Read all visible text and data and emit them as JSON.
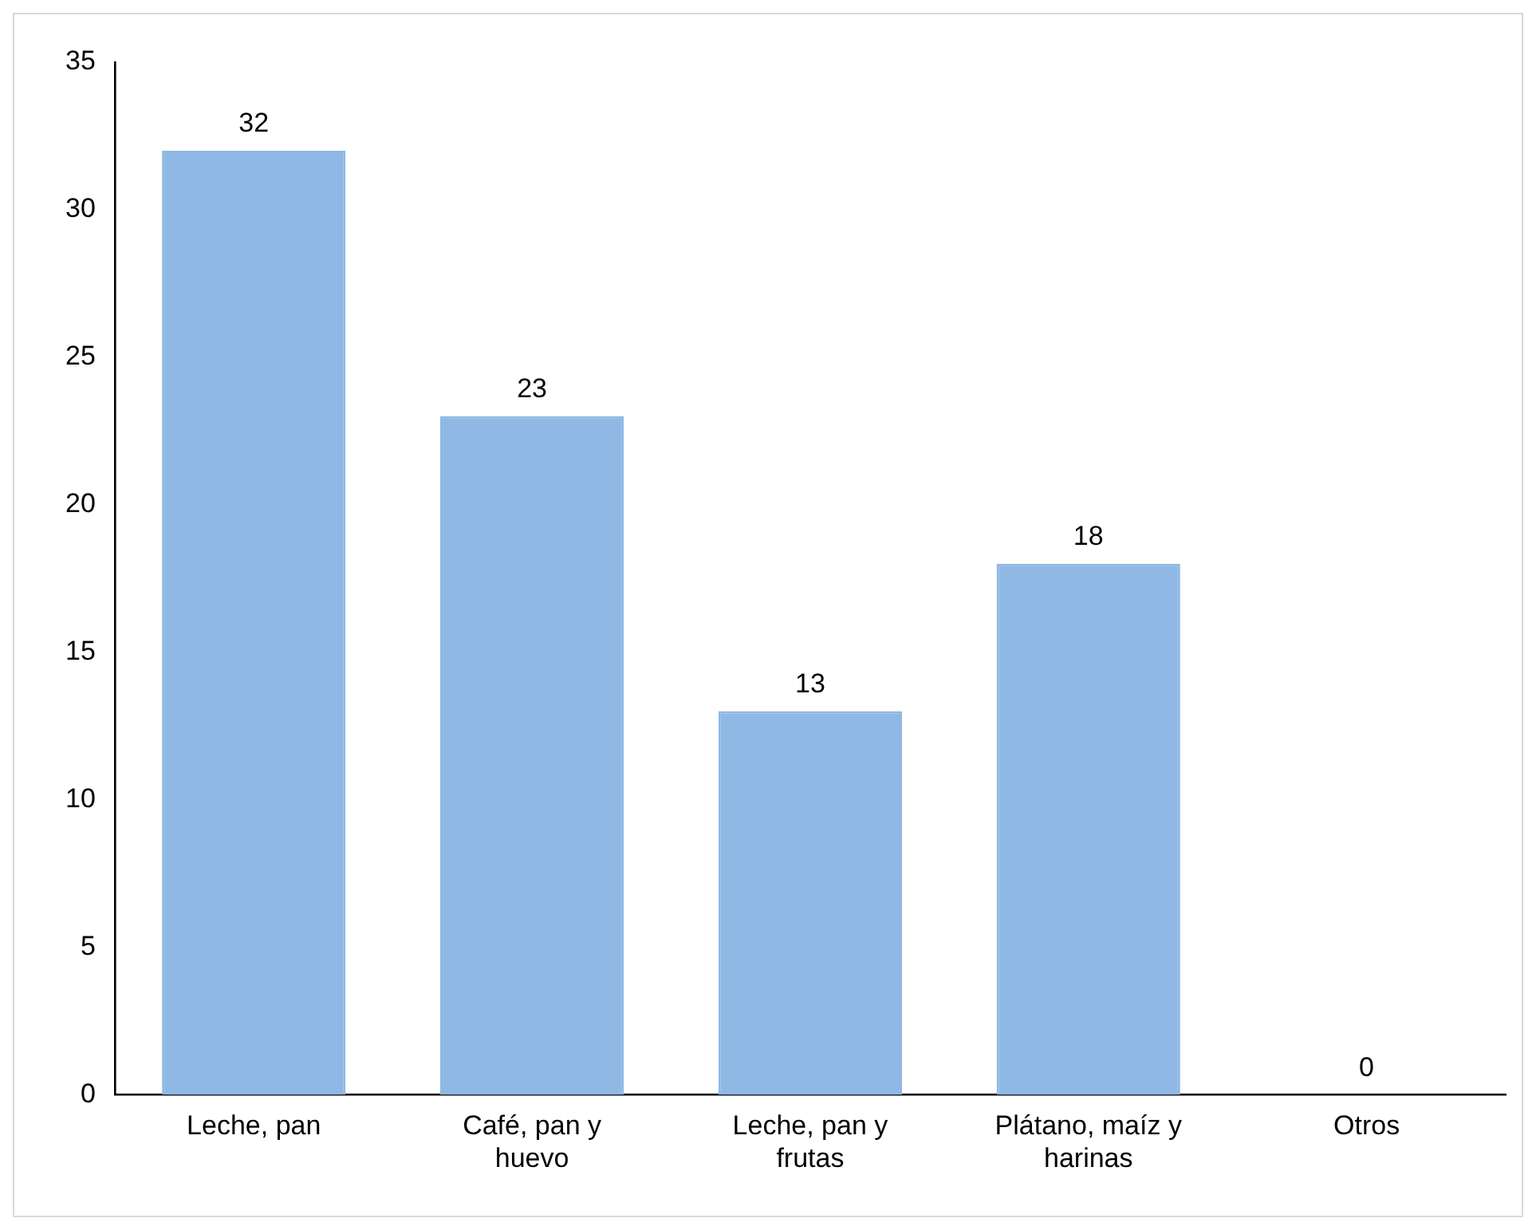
{
  "chart_data": {
    "type": "bar",
    "categories": [
      "Leche, pan",
      "Café, pan y huevo",
      "Leche, pan y frutas",
      "Plátano, maíz y harinas",
      "Otros"
    ],
    "values": [
      32,
      23,
      13,
      18,
      0
    ],
    "color": "#8fb8e4",
    "ylim": [
      0,
      35
    ],
    "yticks": [
      0,
      5,
      10,
      15,
      20,
      25,
      30,
      35
    ],
    "grid": false,
    "legend": false,
    "data_labels": true
  }
}
